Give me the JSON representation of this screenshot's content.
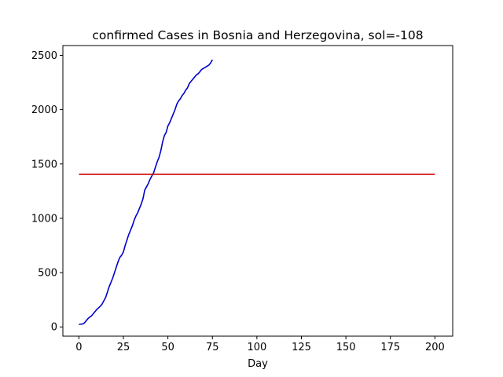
{
  "chart_data": {
    "type": "line",
    "title": "confirmed Cases in Bosnia and Herzegovina, sol=-108",
    "xlabel": "Day",
    "ylabel": "",
    "xlim": [
      -9,
      210
    ],
    "ylim": [
      -85,
      2590
    ],
    "xticks": [
      0,
      25,
      50,
      75,
      100,
      125,
      150,
      175,
      200
    ],
    "yticks": [
      0,
      500,
      1000,
      1500,
      2000,
      2500
    ],
    "grid": false,
    "series": [
      {
        "color": "#0000cc",
        "x": [
          0,
          2,
          3,
          4,
          5,
          6,
          7,
          8,
          9,
          10,
          11,
          12,
          13,
          14,
          15,
          16,
          17,
          18,
          19,
          20,
          21,
          22,
          23,
          24,
          25,
          26,
          27,
          28,
          29,
          30,
          31,
          32,
          33,
          34,
          35,
          36,
          37,
          38,
          39,
          40,
          41,
          42,
          43,
          44,
          45,
          46,
          47,
          48,
          49,
          50,
          51,
          52,
          53,
          54,
          55,
          56,
          57,
          58,
          59,
          60,
          61,
          62,
          63,
          64,
          65,
          66,
          67,
          68,
          69,
          70,
          71,
          72,
          73,
          74,
          75
        ],
        "values": [
          24,
          27,
          35,
          55,
          75,
          90,
          100,
          120,
          140,
          160,
          175,
          190,
          210,
          240,
          270,
          320,
          370,
          410,
          450,
          500,
          550,
          600,
          640,
          660,
          690,
          750,
          800,
          850,
          890,
          930,
          980,
          1020,
          1050,
          1090,
          1130,
          1180,
          1260,
          1290,
          1320,
          1360,
          1390,
          1420,
          1470,
          1520,
          1560,
          1620,
          1700,
          1760,
          1790,
          1850,
          1880,
          1920,
          1960,
          2000,
          2050,
          2080,
          2100,
          2130,
          2150,
          2180,
          2200,
          2240,
          2260,
          2280,
          2300,
          2320,
          2330,
          2350,
          2370,
          2380,
          2390,
          2400,
          2410,
          2430,
          2460
        ]
      },
      {
        "color": "#cc0000",
        "x": [
          0,
          200
        ],
        "values": [
          1405,
          1405
        ]
      }
    ]
  }
}
